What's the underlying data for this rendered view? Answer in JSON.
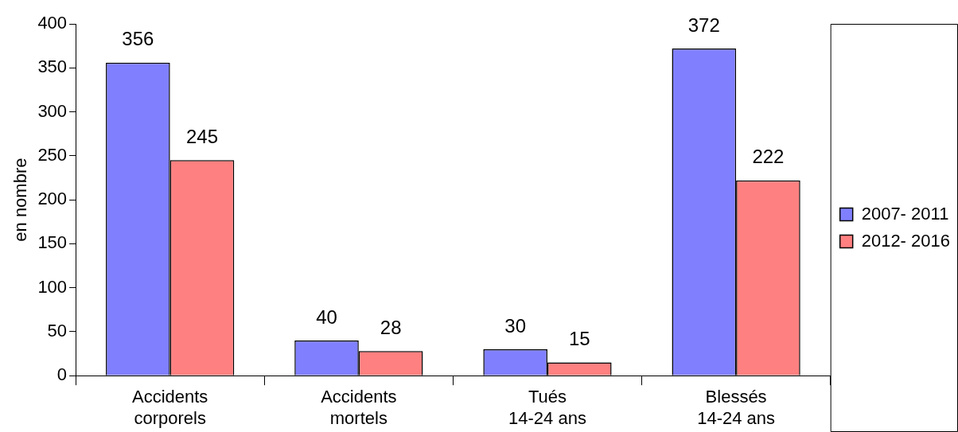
{
  "chart_data": {
    "type": "bar",
    "ylabel": "en nombre",
    "categories": [
      "Accidents\ncorporels",
      "Accidents\nmortels",
      "Tués\n14-24 ans",
      "Blessés\n14-24 ans"
    ],
    "series": [
      {
        "name": "2007- 2011",
        "color": "#8080ff",
        "values": [
          356,
          40,
          30,
          372
        ]
      },
      {
        "name": "2012- 2016",
        "color": "#ff8080",
        "values": [
          245,
          28,
          15,
          222
        ]
      }
    ],
    "ylim": [
      0,
      400
    ],
    "yticks": [
      0,
      50,
      100,
      150,
      200,
      250,
      300,
      350,
      400
    ],
    "grid": false,
    "legend": "right",
    "data_labels": true
  }
}
